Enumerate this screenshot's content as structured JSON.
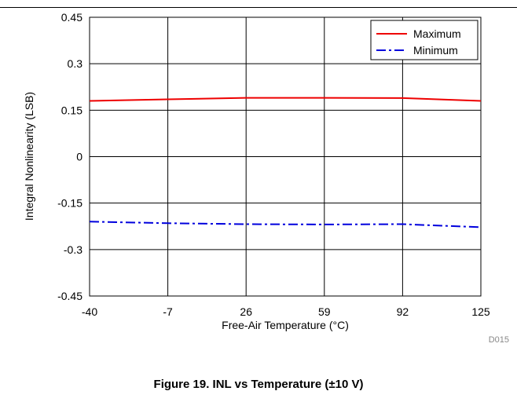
{
  "chart_data": {
    "type": "line",
    "title": "",
    "xlabel": "Free-Air Temperature (°C)",
    "ylabel": "Integral Nonlinearity (LSB)",
    "x": [
      -40,
      -7,
      26,
      59,
      92,
      125
    ],
    "x_tick_labels": [
      "-40",
      "-7",
      "26",
      "59",
      "92",
      "125"
    ],
    "y_tick_labels": [
      "0.45",
      "0.3",
      "0.15",
      "0",
      "-0.15",
      "-0.3",
      "-0.45"
    ],
    "xlim": [
      -40,
      125
    ],
    "ylim": [
      -0.45,
      0.45
    ],
    "yticks": [
      0.45,
      0.3,
      0.15,
      0,
      -0.15,
      -0.3,
      -0.45
    ],
    "grid": true,
    "legend_position": "top-right",
    "series": [
      {
        "name": "Maximum",
        "color": "#ee0000",
        "style": "solid",
        "values": [
          0.18,
          0.185,
          0.19,
          0.19,
          0.189,
          0.18
        ]
      },
      {
        "name": "Minimum",
        "color": "#0000dd",
        "style": "dash-dot",
        "values": [
          -0.21,
          -0.215,
          -0.218,
          -0.219,
          -0.218,
          -0.228
        ]
      }
    ]
  },
  "figure_code": "D015",
  "caption": "Figure 19. INL vs Temperature (±10 V)"
}
